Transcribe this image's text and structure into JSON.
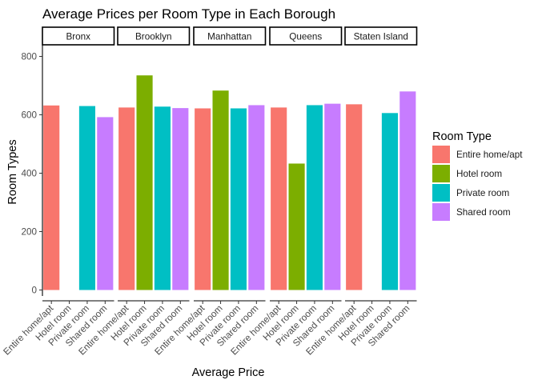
{
  "chart_data": {
    "type": "bar",
    "title": "Average Prices per Room Type in Each Borough",
    "xlabel": "Average Price",
    "ylabel": "Room Types",
    "ylim": [
      0,
      820
    ],
    "yticks": [
      0,
      200,
      400,
      600,
      800
    ],
    "facets": [
      "Bronx",
      "Brooklyn",
      "Manhattan",
      "Queens",
      "Staten Island"
    ],
    "categories": [
      "Entire home/apt",
      "Hotel room",
      "Private room",
      "Shared room"
    ],
    "colors": [
      "#F8766D",
      "#7CAE00",
      "#00BFC4",
      "#C77CFF"
    ],
    "values": [
      [
        632,
        null,
        630,
        592
      ],
      [
        625,
        735,
        628,
        623
      ],
      [
        622,
        683,
        622,
        633
      ],
      [
        625,
        433,
        633,
        638
      ],
      [
        636,
        null,
        606,
        680
      ]
    ],
    "legend": {
      "title": "Room Type",
      "entries": [
        "Entire home/apt",
        "Hotel room",
        "Private room",
        "Shared room"
      ],
      "placement": "right"
    },
    "grid": false
  }
}
